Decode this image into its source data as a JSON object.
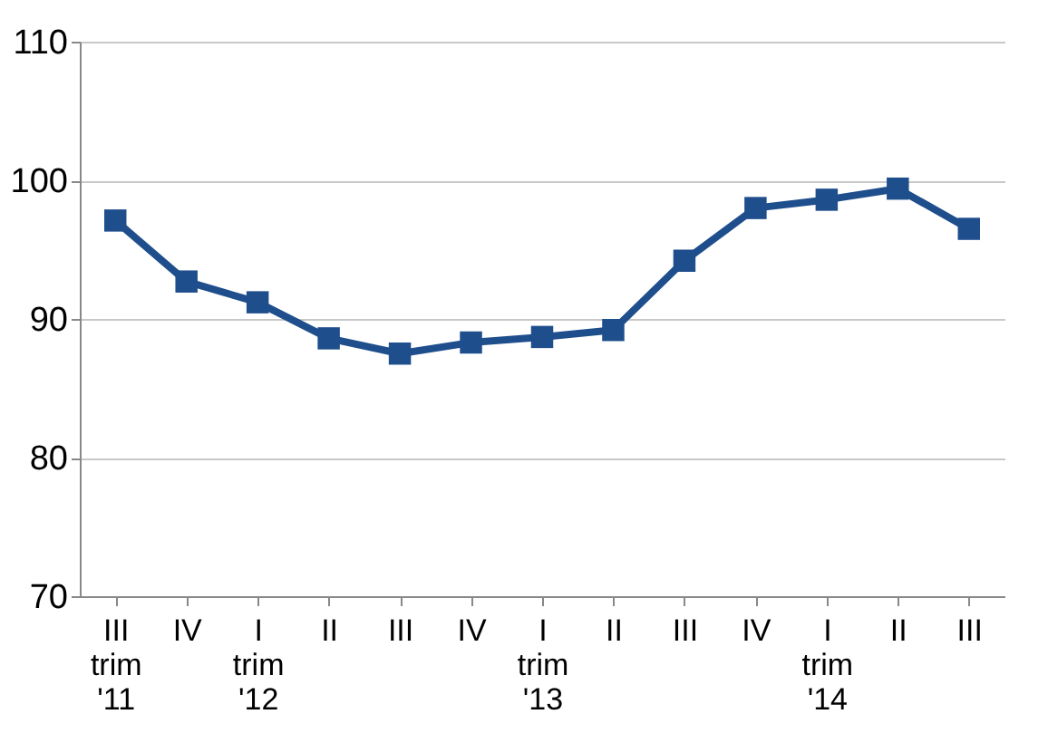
{
  "chart_data": {
    "type": "line",
    "categories": [
      "III\ntrim\n'11",
      "IV",
      "I\ntrim\n'12",
      "II",
      "III",
      "IV",
      "I\ntrim\n'13",
      "II",
      "III",
      "IV",
      "I\ntrim\n'14",
      "II",
      "III"
    ],
    "series": [
      {
        "color": "#1f4e8c",
        "values": [
          97.1,
          92.7,
          91.2,
          88.6,
          87.5,
          88.3,
          88.7,
          89.2,
          94.2,
          98.0,
          98.6,
          99.4,
          96.5
        ]
      }
    ],
    "ylim": [
      70,
      110
    ],
    "yticks": [
      70,
      80,
      90,
      100,
      110
    ],
    "grid": "y",
    "marker": "square",
    "line_style": "solid"
  }
}
